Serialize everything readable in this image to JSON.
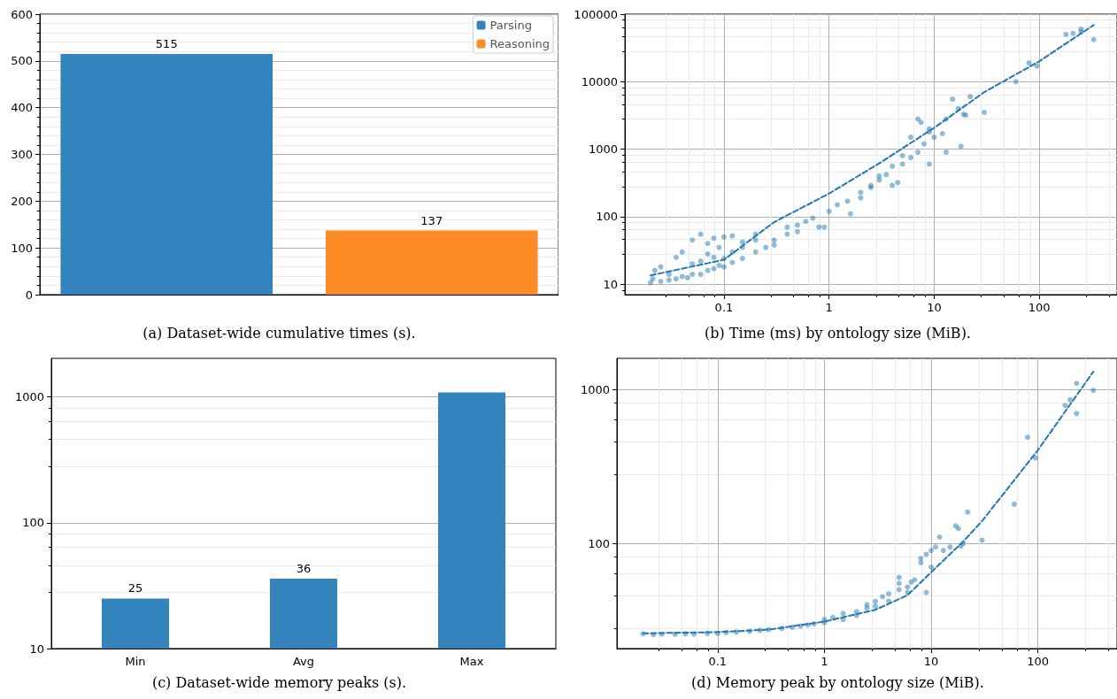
{
  "chart_data": [
    {
      "type": "bar",
      "title": "(a) Dataset-wide cumulative times (s).",
      "categories": [
        null
      ],
      "series": [
        {
          "name": "Parsing",
          "color": "#3383bc",
          "values": [
            515
          ]
        },
        {
          "name": "Reasoning",
          "color": "#ff8b26",
          "values": [
            137
          ]
        }
      ],
      "ylim": [
        0,
        600
      ],
      "yticks": [
        0,
        100,
        200,
        300,
        400,
        500,
        600
      ],
      "grid": "y",
      "legend": "top right",
      "data_labels": true
    },
    {
      "type": "scatter",
      "title": "(b) Time (ms) by ontology size (MiB).",
      "log": "xy",
      "grid": true,
      "marker": "circle",
      "xlim": [
        0.0114,
        550
      ],
      "xticks": [
        0.1,
        1,
        10,
        100
      ],
      "ylim": [
        7,
        100000
      ],
      "yticks": [
        10,
        100,
        1000,
        10000,
        100000
      ],
      "series": [
        {
          "type": "scatter",
          "color": "#1f77b4",
          "x": [
            0.02,
            0.021,
            0.022,
            0.025,
            0.025,
            0.03,
            0.03,
            0.035,
            0.035,
            0.04,
            0.04,
            0.045,
            0.05,
            0.05,
            0.05,
            0.06,
            0.06,
            0.06,
            0.07,
            0.07,
            0.07,
            0.08,
            0.08,
            0.08,
            0.09,
            0.09,
            0.1,
            0.1,
            0.1,
            0.12,
            0.12,
            0.12,
            0.15,
            0.15,
            0.15,
            0.2,
            0.2,
            0.2,
            0.25,
            0.3,
            0.3,
            0.4,
            0.4,
            0.5,
            0.5,
            0.6,
            0.7,
            0.8,
            0.9,
            1,
            1.2,
            1.5,
            1.6,
            2,
            2,
            2.5,
            2.5,
            3,
            3,
            3.5,
            4,
            4,
            4.5,
            5,
            5,
            6,
            6,
            7,
            7,
            7.5,
            8,
            9,
            9,
            9,
            10,
            12,
            13,
            13,
            15,
            17,
            18,
            19,
            20,
            22,
            30,
            60,
            80,
            95,
            180,
            210,
            250,
            250,
            330
          ],
          "values": [
            10.5,
            12,
            16,
            11,
            18,
            11.5,
            14,
            12,
            25,
            13,
            30,
            12.5,
            14,
            20,
            45,
            14,
            22,
            55,
            16,
            28,
            40,
            17,
            25,
            48,
            19,
            35,
            18,
            24,
            50,
            21,
            30,
            52,
            24,
            35,
            42,
            30,
            45,
            55,
            35,
            45,
            38,
            55,
            70,
            75,
            60,
            85,
            95,
            70,
            70,
            120,
            150,
            170,
            110,
            230,
            190,
            270,
            290,
            400,
            350,
            420,
            560,
            290,
            320,
            600,
            800,
            750,
            1500,
            900,
            2800,
            2500,
            1200,
            1800,
            2000,
            600,
            1500,
            1700,
            2800,
            900,
            5500,
            4000,
            1100,
            3300,
            3200,
            6000,
            3500,
            10000,
            19000,
            17000,
            50000,
            52000,
            55000,
            60000,
            42000
          ]
        },
        {
          "type": "line",
          "line_style": "dashed",
          "marker": "none",
          "color": "#1f77b4",
          "x": [
            0.02,
            0.1,
            0.3,
            1,
            3,
            10,
            30,
            100,
            330
          ],
          "values": [
            13.5,
            23,
            83,
            220,
            616,
            2070,
            7000,
            20000,
            69000
          ]
        }
      ]
    },
    {
      "type": "bar",
      "title": "(c) Dataset-wide memory peaks (s).",
      "categories": [
        "Min",
        "Avg",
        "Max"
      ],
      "values": [
        25,
        36,
        1090
      ],
      "value_labels": [
        "25",
        "36",
        null
      ],
      "color": "#3383bc",
      "log": true,
      "ylim": [
        10,
        2030
      ],
      "yticks": [
        10,
        100,
        1000
      ],
      "grid": "y"
    },
    {
      "type": "scatter",
      "title": "(d) Memory peak by ontology size (MiB).",
      "log": "xy",
      "grid": true,
      "marker": "circle",
      "xlim": [
        0.0114,
        550
      ],
      "xticks": [
        0.1,
        1,
        10,
        100
      ],
      "ylim": [
        20.7,
        1600
      ],
      "yticks": [
        100,
        1000
      ],
      "series": [
        {
          "type": "scatter",
          "color": "#1f77b4",
          "x": [
            0.02,
            0.025,
            0.03,
            0.04,
            0.05,
            0.06,
            0.08,
            0.1,
            0.12,
            0.15,
            0.2,
            0.25,
            0.3,
            0.4,
            0.5,
            0.6,
            0.7,
            0.8,
            1,
            1,
            1.2,
            1.5,
            1.5,
            2,
            2,
            2.5,
            2.5,
            3,
            3,
            3.5,
            4,
            4,
            5,
            5,
            5,
            6,
            6,
            6.5,
            7,
            8,
            8,
            9,
            9,
            10,
            10,
            11,
            12,
            13,
            15,
            17,
            18,
            19,
            20,
            22,
            30,
            60,
            80,
            95,
            180,
            200,
            230,
            230,
            330
          ],
          "values": [
            25.8,
            25.5,
            25.7,
            25.6,
            25.8,
            25.7,
            26,
            26,
            26.3,
            26.5,
            26.8,
            27.2,
            27.5,
            28,
            28.5,
            29,
            29.5,
            30,
            30.5,
            32,
            33,
            35,
            32,
            36,
            34,
            40,
            38,
            42,
            39,
            45,
            47,
            42,
            55,
            60,
            50,
            52,
            48,
            56,
            58,
            75,
            80,
            85,
            48,
            90,
            70,
            95,
            110,
            90,
            95,
            130,
            125,
            96,
            100,
            160,
            105,
            180,
            490,
            360,
            790,
            860,
            1100,
            700,
            990
          ]
        },
        {
          "type": "line",
          "line_style": "dashed",
          "marker": "none",
          "color": "#1f77b4",
          "x": [
            0.02,
            0.1,
            0.3,
            1,
            3,
            6,
            10,
            20,
            30,
            100,
            330
          ],
          "values": [
            26,
            26.5,
            27.5,
            31,
            37,
            46,
            65,
            103,
            140,
            405,
            1310
          ]
        }
      ]
    }
  ]
}
